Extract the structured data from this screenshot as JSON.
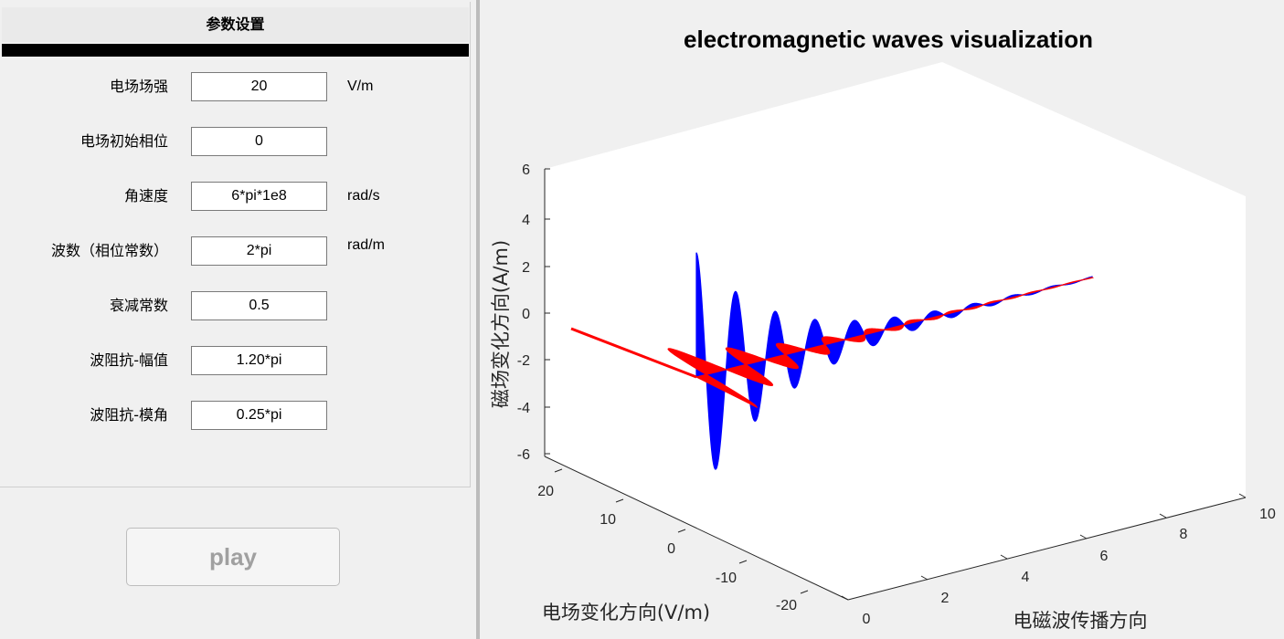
{
  "panel": {
    "title": "参数设置",
    "params": [
      {
        "label": "电场场强",
        "value": "20",
        "unit": "V/m"
      },
      {
        "label": "电场初始相位",
        "value": "0",
        "unit": ""
      },
      {
        "label": "角速度",
        "value": "6*pi*1e8",
        "unit": "rad/s"
      },
      {
        "label": "波数（相位常数）",
        "value": "2*pi",
        "unit": "rad/m"
      },
      {
        "label": "衰减常数",
        "value": "0.5",
        "unit": ""
      },
      {
        "label": "波阻抗-幅值",
        "value": "1.20*pi",
        "unit": ""
      },
      {
        "label": "波阻抗-模角",
        "value": "0.25*pi",
        "unit": ""
      }
    ],
    "play_label": "play"
  },
  "plot": {
    "title": "electromagnetic waves visualization",
    "zlabel": "磁场变化方向(A/m)",
    "ylabel": "电场变化方向(V/m)",
    "xlabel": "电磁波传播方向",
    "zticks": [
      "6",
      "4",
      "2",
      "0",
      "-2",
      "-4",
      "-6"
    ],
    "yticks": [
      "20",
      "10",
      "0",
      "-10",
      "-20"
    ],
    "xticks": [
      "0",
      "2",
      "4",
      "6",
      "8",
      "10"
    ]
  },
  "colors": {
    "electric": "#ff0000",
    "magnetic": "#0000ff",
    "background": "#f0f0f0"
  },
  "chart_data": {
    "type": "line",
    "title": "electromagnetic waves visualization",
    "xlabel": "电磁波传播方向",
    "ylabel": "电场变化方向(V/m)",
    "zlabel": "磁场变化方向(A/m)",
    "xlim": [
      0,
      10
    ],
    "ylim": [
      -20,
      20
    ],
    "zlim": [
      -6,
      6
    ],
    "grid": false,
    "series": [
      {
        "name": "",
        "color": "#ff0000",
        "amplitude": 20,
        "decay": 0.5,
        "wavenumber": "2*pi"
      },
      {
        "name": "",
        "color": "#0000ff",
        "amplitude": 5.3,
        "decay": 0.5,
        "wavenumber": "2*pi"
      }
    ]
  }
}
